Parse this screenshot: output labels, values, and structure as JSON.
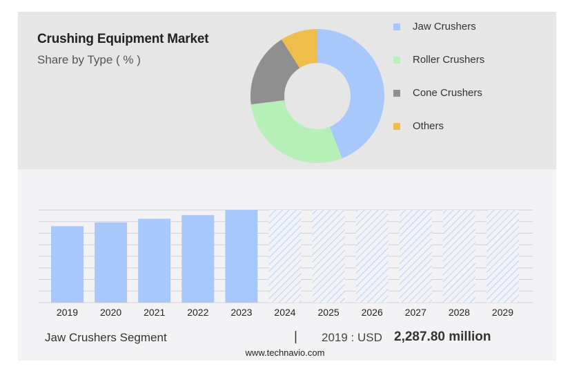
{
  "header": {
    "title": "Crushing Equipment Market",
    "subtitle": "Share by Type ( % )"
  },
  "chart_data": [
    {
      "type": "pie",
      "variant": "donut",
      "slices": [
        {
          "label": "Jaw Crushers",
          "value": 44,
          "color": "#a8c8fc"
        },
        {
          "label": "Roller Crushers",
          "value": 29,
          "color": "#b6f0b8"
        },
        {
          "label": "Cone Crushers",
          "value": 18,
          "color": "#8f8f8f"
        },
        {
          "label": "Others",
          "value": 9,
          "color": "#efbd4a"
        }
      ],
      "legend_position": "right"
    },
    {
      "type": "bar",
      "categories": [
        "2019",
        "2020",
        "2021",
        "2022",
        "2023",
        "2024",
        "2025",
        "2026",
        "2027",
        "2028",
        "2029"
      ],
      "values": [
        2287.8,
        2400,
        2510,
        2620,
        2770,
        2770,
        2770,
        2770,
        2770,
        2770,
        2770
      ],
      "forecast_from": "2024",
      "bar_color": "#a8c8fc",
      "ylim": [
        0,
        2770
      ],
      "grid": true
    }
  ],
  "footer": {
    "segment": "Jaw Crushers Segment",
    "separator": "|",
    "year_label": "2019 : USD",
    "value": "2,287.80 million"
  },
  "source": "www.technavio.com"
}
